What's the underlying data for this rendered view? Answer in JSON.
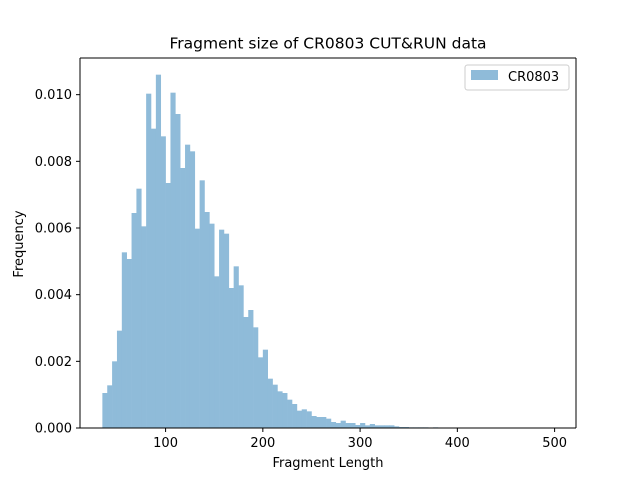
{
  "chart_data": {
    "type": "bar",
    "title": "Fragment size of CR0803 CUT&RUN data",
    "xlabel": "Fragment Length",
    "ylabel": "Frequency",
    "xlim": [
      12,
      522
    ],
    "ylim": [
      0,
      0.0111
    ],
    "x_ticks": [
      100,
      200,
      300,
      400,
      500
    ],
    "x_tick_labels": [
      "100",
      "200",
      "300",
      "400",
      "500"
    ],
    "y_ticks": [
      0,
      0.002,
      0.004,
      0.006,
      0.008,
      0.01
    ],
    "y_tick_labels": [
      "0.000",
      "0.002",
      "0.004",
      "0.006",
      "0.008",
      "0.010"
    ],
    "legend": {
      "position": "top-right",
      "entries": [
        "CR0803"
      ]
    },
    "grid": false,
    "series": [
      {
        "name": "CR0803",
        "color": "#8fbbd9",
        "bin_start": 35,
        "bin_width": 5,
        "values": [
          0.00105,
          0.00128,
          0.002,
          0.00292,
          0.00527,
          0.00507,
          0.00645,
          0.00718,
          0.00605,
          0.01003,
          0.00898,
          0.0106,
          0.00875,
          0.00735,
          0.01006,
          0.00942,
          0.0078,
          0.0085,
          0.0083,
          0.00598,
          0.00743,
          0.00648,
          0.00613,
          0.00455,
          0.00595,
          0.00583,
          0.0042,
          0.00485,
          0.00428,
          0.00333,
          0.00354,
          0.00302,
          0.00212,
          0.00235,
          0.00148,
          0.0013,
          0.0011,
          0.00105,
          0.00085,
          0.00072,
          0.00052,
          0.00056,
          0.0005,
          0.00036,
          0.00033,
          0.00033,
          0.00028,
          0.00018,
          0.00015,
          0.00022,
          0.00015,
          0.00015,
          9e-05,
          0.00015,
          8e-05,
          0.00012,
          8e-05,
          8e-05,
          8e-05,
          8e-05,
          5e-05,
          3e-05,
          3e-05,
          2e-05,
          2e-05,
          2e-05,
          2e-05,
          1e-05,
          2e-05,
          1e-05,
          1e-05,
          1e-05,
          1e-05,
          1e-05,
          1e-05,
          1e-05,
          1e-05,
          1e-05,
          1e-05,
          1e-05,
          1e-05,
          1e-05,
          1e-05,
          1e-05,
          1e-05,
          1e-05,
          1e-05,
          1e-05,
          1e-05,
          1e-05,
          1e-05,
          1e-05,
          1e-05
        ]
      }
    ]
  }
}
